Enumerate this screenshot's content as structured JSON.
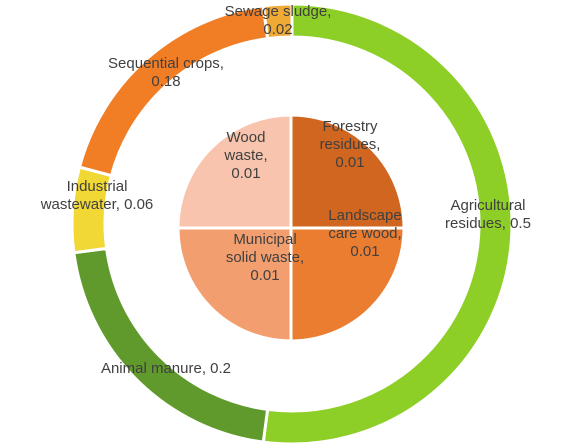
{
  "chart_data": [
    {
      "type": "pie",
      "variant": "donut",
      "ring": "outer",
      "series": [
        {
          "label_lines": [
            "Agricultural",
            "residues, 0.5"
          ],
          "value": 0.5,
          "color": "#8dce27"
        },
        {
          "label_lines": [
            "Animal manure, 0.2"
          ],
          "value": 0.2,
          "color": "#609a2c"
        },
        {
          "label_lines": [
            "Industrial",
            "wastewater, 0.06"
          ],
          "value": 0.06,
          "color": "#f2d835"
        },
        {
          "label_lines": [
            "Sequential crops,",
            "0.18"
          ],
          "value": 0.18,
          "color": "#f17d24"
        },
        {
          "label_lines": [
            "Sewage sludge,",
            "0.02"
          ],
          "value": 0.02,
          "color": "#efaa35"
        }
      ]
    },
    {
      "type": "pie",
      "ring": "inner",
      "series": [
        {
          "label_lines": [
            "Forestry",
            "residues,",
            "0.01"
          ],
          "value": 0.01,
          "color": "#d0661f"
        },
        {
          "label_lines": [
            "Landscape",
            "care wood,",
            "0.01"
          ],
          "value": 0.01,
          "color": "#ea7d30"
        },
        {
          "label_lines": [
            "Municipal",
            "solid waste,",
            "0.01"
          ],
          "value": 0.01,
          "color": "#f39e6e"
        },
        {
          "label_lines": [
            "Wood",
            "waste,",
            "0.01"
          ],
          "value": 0.01,
          "color": "#f8c4ad"
        }
      ]
    }
  ]
}
